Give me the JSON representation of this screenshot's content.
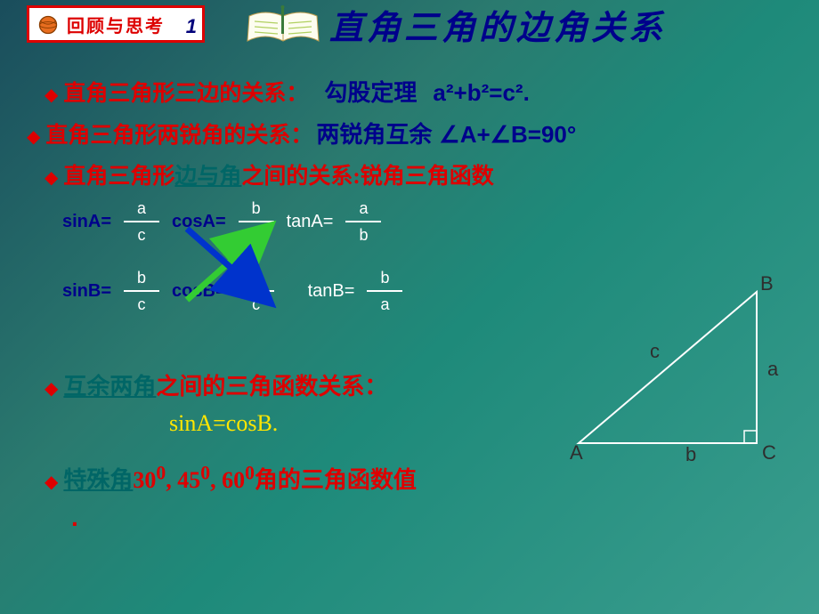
{
  "header": {
    "tag_label": "回顾与思考",
    "tag_number": "1",
    "title_full": "直角三角的边角关系",
    "title_highlight_start": 5
  },
  "colors": {
    "red": "#d00000",
    "navy": "#00008b",
    "yellow": "#ffe600",
    "teal": "#006666",
    "white": "#ffffff",
    "green_arrow": "#33cc33",
    "blue_arrow": "#0033cc"
  },
  "bullets": [
    {
      "diamond": "◆",
      "prefix": "直角三角形三边的关系：",
      "formula_label": "勾股定理",
      "formula": "a²+b²=c²."
    },
    {
      "diamond": "◆",
      "prefix": "直角三角形两锐角的关系：",
      "formula_label": "两锐角互余",
      "formula": "∠A+∠B=90°"
    },
    {
      "diamond": "◆",
      "prefix": "直角三角形",
      "link": "边与角",
      "suffix": "之间的关系:锐角三角函数"
    }
  ],
  "trig": {
    "rowA": {
      "sin": {
        "label": "sinA=",
        "num": "a",
        "den": "c"
      },
      "cos": {
        "label": "cosA=",
        "num": "b",
        "den": "c"
      },
      "tan": {
        "label": "tanA=",
        "num": "a",
        "den": "b"
      }
    },
    "rowB": {
      "sin": {
        "label": "sinB=",
        "num": "b",
        "den": "c"
      },
      "cos": {
        "label": "cosB=",
        "num": "a",
        "den": "c"
      },
      "tan": {
        "label": "tanB=",
        "num": "b",
        "den": "a"
      }
    }
  },
  "complementary": {
    "diamond": "◆",
    "link": "互余两角",
    "suffix": "之间的三角函数关系：",
    "equation": "sinA=cosB."
  },
  "special": {
    "diamond": "◆",
    "link": "特殊角",
    "suffix1": "30",
    "suffix2": ", 45",
    "suffix3": ", 60",
    "suffix4": "角的三角函数值",
    "period": "."
  },
  "triangle": {
    "labels": {
      "A": "A",
      "B": "B",
      "C": "C",
      "a": "a",
      "b": "b",
      "c": "c"
    },
    "stroke": "#ffffff",
    "label_color": "#2e2e2e",
    "points": {
      "A": [
        10,
        180
      ],
      "B": [
        210,
        10
      ],
      "C": [
        210,
        180
      ]
    }
  }
}
